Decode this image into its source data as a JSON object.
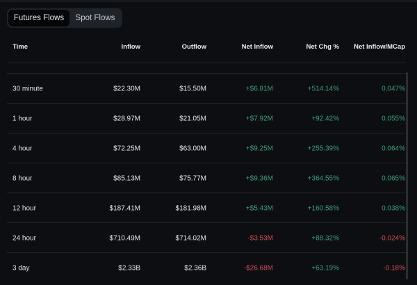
{
  "tabs": [
    {
      "label": "Futures Flows",
      "active": true
    },
    {
      "label": "Spot Flows",
      "active": false
    }
  ],
  "columns": [
    "Time",
    "Inflow",
    "Outflow",
    "Net Inflow",
    "Net Chg %",
    "Net Inflow/MCap"
  ],
  "colors": {
    "positive": "#3a9e78",
    "negative": "#d14a55",
    "background": "#0d0e12"
  },
  "rows": [
    {
      "time": "30 minute",
      "inflow": "$22.30M",
      "outflow": "$15.50M",
      "net_inflow": "+$6.81M",
      "net_chg": "+514.14%",
      "mcap": "0.047%",
      "net_sign": "g",
      "chg_sign": "g",
      "mcap_sign": "g"
    },
    {
      "time": "1 hour",
      "inflow": "$28.97M",
      "outflow": "$21.05M",
      "net_inflow": "+$7.92M",
      "net_chg": "+92.42%",
      "mcap": "0.055%",
      "net_sign": "g",
      "chg_sign": "g",
      "mcap_sign": "g"
    },
    {
      "time": "4 hour",
      "inflow": "$72.25M",
      "outflow": "$63.00M",
      "net_inflow": "+$9.25M",
      "net_chg": "+255.39%",
      "mcap": "0.064%",
      "net_sign": "g",
      "chg_sign": "g",
      "mcap_sign": "g"
    },
    {
      "time": "8 hour",
      "inflow": "$85.13M",
      "outflow": "$75.77M",
      "net_inflow": "+$9.36M",
      "net_chg": "+364.55%",
      "mcap": "0.065%",
      "net_sign": "g",
      "chg_sign": "g",
      "mcap_sign": "g"
    },
    {
      "time": "12 hour",
      "inflow": "$187.41M",
      "outflow": "$181.98M",
      "net_inflow": "+$5.43M",
      "net_chg": "+160.58%",
      "mcap": "0.038%",
      "net_sign": "g",
      "chg_sign": "g",
      "mcap_sign": "g"
    },
    {
      "time": "24 hour",
      "inflow": "$710.49M",
      "outflow": "$714.02M",
      "net_inflow": "-$3.53M",
      "net_chg": "+88.32%",
      "mcap": "-0.024%",
      "net_sign": "r",
      "chg_sign": "g",
      "mcap_sign": "r"
    },
    {
      "time": "3 day",
      "inflow": "$2.33B",
      "outflow": "$2.36B",
      "net_inflow": "-$26.68M",
      "net_chg": "+63.19%",
      "mcap": "-0.18%",
      "net_sign": "r",
      "chg_sign": "g",
      "mcap_sign": "r"
    }
  ]
}
